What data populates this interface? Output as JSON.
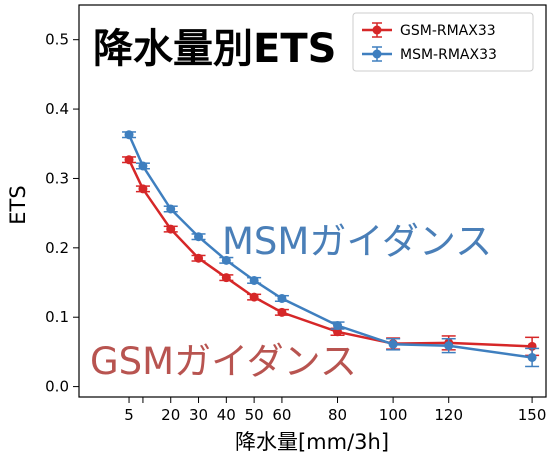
{
  "chart_data": {
    "type": "line",
    "title": "降水量別ETS",
    "xlabel": "降水量[mm/3h]",
    "ylabel": "ETS",
    "xlim": [
      -13,
      155
    ],
    "ylim": [
      -0.015,
      0.55
    ],
    "grid": false,
    "legend_position": "top-right",
    "x_ticks": [
      5,
      10,
      20,
      30,
      40,
      50,
      60,
      80,
      100,
      120,
      150
    ],
    "x_tick_labels": [
      "5",
      "",
      "20",
      "30",
      "40",
      "50",
      "60",
      "80",
      "100",
      "120",
      "150"
    ],
    "y_ticks": [
      0.0,
      0.1,
      0.2,
      0.3,
      0.4,
      0.5
    ],
    "y_tick_labels": [
      "0.0",
      "0.1",
      "0.2",
      "0.3",
      "0.4",
      "0.5"
    ],
    "x": [
      5,
      10,
      20,
      30,
      40,
      50,
      60,
      80,
      100,
      120,
      150
    ],
    "series": [
      {
        "name": "GSM-RMAX33",
        "color": "#d62728",
        "values": [
          0.327,
          0.285,
          0.227,
          0.185,
          0.157,
          0.129,
          0.107,
          0.079,
          0.062,
          0.063,
          0.058
        ],
        "errors": [
          0.004,
          0.004,
          0.004,
          0.004,
          0.004,
          0.004,
          0.004,
          0.005,
          0.008,
          0.01,
          0.013
        ]
      },
      {
        "name": "MSM-RMAX33",
        "color": "#3f7fbf",
        "values": [
          0.363,
          0.318,
          0.256,
          0.216,
          0.182,
          0.153,
          0.127,
          0.088,
          0.061,
          0.059,
          0.042
        ],
        "errors": [
          0.004,
          0.004,
          0.004,
          0.004,
          0.004,
          0.004,
          0.004,
          0.005,
          0.008,
          0.01,
          0.013
        ]
      }
    ],
    "annotations": [
      {
        "text": "MSMガイダンス",
        "color": "#4a7fb8"
      },
      {
        "text": "GSMガイダンス",
        "color": "#b85450"
      }
    ]
  }
}
